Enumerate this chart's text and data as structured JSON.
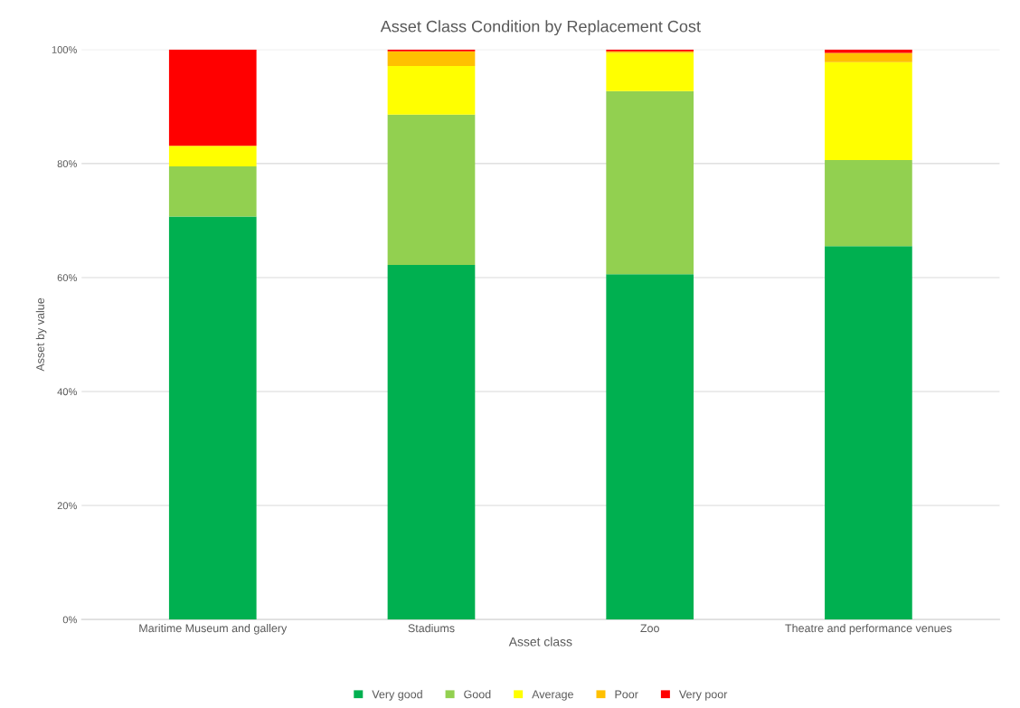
{
  "chart_data": {
    "type": "bar",
    "title": "Asset Class Condition by Replacement Cost",
    "xlabel": "Asset class",
    "ylabel": "Asset by value",
    "categories": [
      "Maritime Museum and gallery",
      "Stadiums",
      "Zoo",
      "Theatre and performance venues"
    ],
    "stacked": true,
    "series": [
      {
        "name": "Very good",
        "color": "#00b050",
        "values": [
          70.7,
          62.2,
          60.6,
          65.5
        ]
      },
      {
        "name": "Good",
        "color": "#92d050",
        "values": [
          8.8,
          26.4,
          32.1,
          15.1
        ]
      },
      {
        "name": "Average",
        "color": "#ffff00",
        "values": [
          3.6,
          8.5,
          6.7,
          17.2
        ]
      },
      {
        "name": "Poor",
        "color": "#ffc000",
        "values": [
          0,
          2.6,
          0.3,
          1.6
        ]
      },
      {
        "name": "Very poor",
        "color": "#ff0000",
        "values": [
          16.9,
          0.3,
          0.3,
          0.6
        ]
      }
    ],
    "ylim": [
      0,
      100
    ],
    "yticks": [
      {
        "value": 0,
        "label": "0%"
      },
      {
        "value": 20,
        "label": "20%"
      },
      {
        "value": 40,
        "label": "40%"
      },
      {
        "value": 60,
        "label": "60%"
      },
      {
        "value": 80,
        "label": "80%"
      },
      {
        "value": 100,
        "label": "100%"
      }
    ],
    "grid": "y",
    "legend": "bottom"
  }
}
